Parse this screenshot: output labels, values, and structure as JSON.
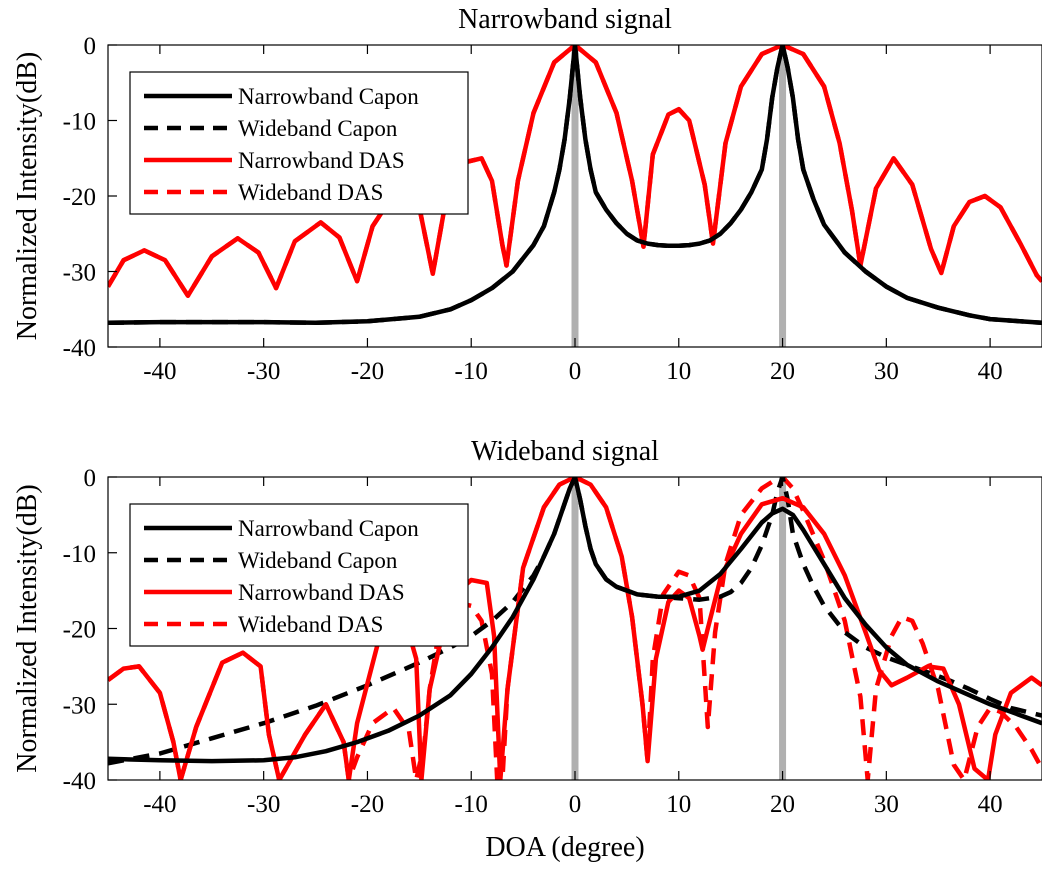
{
  "chart_data": [
    {
      "type": "line",
      "title": "Narrowband signal",
      "xlabel": "",
      "ylabel": "Normalized Intensity(dB)",
      "xlim": [
        -45,
        45
      ],
      "ylim": [
        -40,
        0
      ],
      "xticks": [
        -40,
        -30,
        -20,
        -10,
        0,
        10,
        20,
        30,
        40
      ],
      "yticks": [
        0,
        -10,
        -20,
        -30,
        -40
      ],
      "grid": false,
      "legend_position": "top-left",
      "source_markers": {
        "x": [
          0,
          20
        ],
        "color": "#b0b0b0"
      },
      "series": [
        {
          "name": "Narrowband Capon",
          "color": "#000000",
          "dash": "solid",
          "x": [
            -45,
            -40,
            -35,
            -30,
            -25,
            -20,
            -15,
            -12,
            -10,
            -8,
            -6,
            -4,
            -3,
            -2,
            -1.5,
            -1,
            -0.5,
            0,
            0.5,
            1,
            1.5,
            2,
            3,
            4,
            5,
            6,
            7,
            8,
            9,
            10,
            11,
            12,
            13,
            14,
            15,
            16,
            17,
            18,
            18.5,
            19,
            19.5,
            20,
            20.5,
            21,
            21.5,
            22,
            23,
            24,
            26,
            28,
            30,
            32,
            35,
            38,
            40,
            42,
            45
          ],
          "y": [
            -36.8,
            -36.7,
            -36.7,
            -36.7,
            -36.8,
            -36.6,
            -36,
            -35,
            -33.8,
            -32.2,
            -30,
            -26.5,
            -24,
            -19.5,
            -16.5,
            -12.5,
            -7,
            0,
            -7,
            -12.5,
            -16.5,
            -19.5,
            -21.8,
            -23.6,
            -25,
            -25.9,
            -26.3,
            -26.5,
            -26.6,
            -26.6,
            -26.5,
            -26.3,
            -25.9,
            -25,
            -23.6,
            -21.8,
            -19.5,
            -16.5,
            -12.5,
            -7,
            -3,
            0,
            -3,
            -7,
            -12.5,
            -16.5,
            -20.5,
            -23.8,
            -27.5,
            -30,
            -32,
            -33.5,
            -34.8,
            -35.8,
            -36.3,
            -36.5,
            -36.8
          ]
        },
        {
          "name": "Wideband Capon",
          "color": "#000000",
          "dash": "dashed",
          "x": [
            -45,
            -40,
            -35,
            -30,
            -25,
            -20,
            -15,
            -12,
            -10,
            -8,
            -6,
            -4,
            -3,
            -2,
            -1.5,
            -1,
            -0.5,
            0,
            0.5,
            1,
            1.5,
            2,
            3,
            4,
            5,
            6,
            7,
            8,
            9,
            10,
            11,
            12,
            13,
            14,
            15,
            16,
            17,
            18,
            18.5,
            19,
            19.5,
            20,
            20.5,
            21,
            21.5,
            22,
            23,
            24,
            26,
            28,
            30,
            32,
            35,
            38,
            40,
            42,
            45
          ],
          "y": [
            -36.8,
            -36.7,
            -36.7,
            -36.7,
            -36.8,
            -36.6,
            -36,
            -35,
            -33.8,
            -32.2,
            -30,
            -26.5,
            -24,
            -19.5,
            -16.5,
            -12.5,
            -7,
            0,
            -7,
            -12.5,
            -16.5,
            -19.5,
            -21.8,
            -23.6,
            -25,
            -25.9,
            -26.3,
            -26.5,
            -26.6,
            -26.6,
            -26.5,
            -26.3,
            -25.9,
            -25,
            -23.6,
            -21.8,
            -19.5,
            -16.5,
            -12.5,
            -7,
            -3,
            0,
            -3,
            -7,
            -12.5,
            -16.5,
            -20.5,
            -23.8,
            -27.5,
            -30,
            -32,
            -33.5,
            -34.8,
            -35.8,
            -36.3,
            -36.5,
            -36.8
          ]
        },
        {
          "name": "Narrowband DAS",
          "color": "#ff0000",
          "dash": "solid",
          "x": [
            -45,
            -43.5,
            -41.5,
            -39.5,
            -37.3,
            -35,
            -32.5,
            -30.5,
            -28.8,
            -27,
            -24.5,
            -22.7,
            -21,
            -19.5,
            -17,
            -15,
            -13.7,
            -12.5,
            -10.5,
            -9,
            -8,
            -7,
            -6.6,
            -5.5,
            -4,
            -2,
            0,
            2,
            4,
            5.5,
            6.6,
            7.5,
            9,
            10,
            11,
            12.5,
            13.3,
            14.5,
            16,
            18,
            20,
            22,
            24,
            25.5,
            26.7,
            27.5,
            29,
            30.7,
            32.5,
            34.3,
            35.3,
            36.5,
            38,
            39.5,
            41,
            43,
            44.5,
            45
          ],
          "y": [
            -32,
            -28.5,
            -27.2,
            -28.5,
            -33.2,
            -28,
            -25.6,
            -27.5,
            -32.2,
            -26,
            -23.5,
            -25.5,
            -31.3,
            -24,
            -18.8,
            -21.5,
            -30.3,
            -21,
            -15.5,
            -15,
            -18,
            -26.5,
            -29.2,
            -18,
            -9,
            -2.3,
            0,
            -2.3,
            -9,
            -18,
            -26.7,
            -14.5,
            -9.2,
            -8.5,
            -10,
            -18.5,
            -26.3,
            -13,
            -5.5,
            -1.2,
            0,
            -1.2,
            -5.5,
            -13,
            -22,
            -29.2,
            -19,
            -15,
            -18.5,
            -27,
            -30.2,
            -24,
            -20.8,
            -20,
            -21.5,
            -26.5,
            -30.5,
            -31.3
          ]
        },
        {
          "name": "Wideband DAS",
          "color": "#ff0000",
          "dash": "dashed",
          "x": [
            -45,
            -43.5,
            -41.5,
            -39.5,
            -37.3,
            -35,
            -32.5,
            -30.5,
            -28.8,
            -27,
            -24.5,
            -22.7,
            -21,
            -19.5,
            -17,
            -15,
            -13.7,
            -12.5,
            -10.5,
            -9,
            -8,
            -7,
            -6.6,
            -5.5,
            -4,
            -2,
            0,
            2,
            4,
            5.5,
            6.6,
            7.5,
            9,
            10,
            11,
            12.5,
            13.3,
            14.5,
            16,
            18,
            20,
            22,
            24,
            25.5,
            26.7,
            27.5,
            29,
            30.7,
            32.5,
            34.3,
            35.3,
            36.5,
            38,
            39.5,
            41,
            43,
            44.5,
            45
          ],
          "y": [
            -32,
            -28.5,
            -27.2,
            -28.5,
            -33.2,
            -28,
            -25.6,
            -27.5,
            -32.2,
            -26,
            -23.5,
            -25.5,
            -31.3,
            -24,
            -18.8,
            -21.5,
            -30.3,
            -21,
            -15.5,
            -15,
            -18,
            -26.5,
            -29.2,
            -18,
            -9,
            -2.3,
            0,
            -2.3,
            -9,
            -18,
            -26.7,
            -14.5,
            -9.2,
            -8.5,
            -10,
            -18.5,
            -26.3,
            -13,
            -5.5,
            -1.2,
            0,
            -1.2,
            -5.5,
            -13,
            -22,
            -29.2,
            -19,
            -15,
            -18.5,
            -27,
            -30.2,
            -24,
            -20.8,
            -20,
            -21.5,
            -26.5,
            -30.5,
            -31.3
          ]
        }
      ]
    },
    {
      "type": "line",
      "title": "Wideband signal",
      "xlabel": "DOA (degree)",
      "ylabel": "Normalized Intensity(dB)",
      "xlim": [
        -45,
        45
      ],
      "ylim": [
        -40,
        0
      ],
      "xticks": [
        -40,
        -30,
        -20,
        -10,
        0,
        10,
        20,
        30,
        40
      ],
      "yticks": [
        0,
        -10,
        -20,
        -30,
        -40
      ],
      "grid": false,
      "legend_position": "top-left",
      "source_markers": {
        "x": [
          0,
          20
        ],
        "color": "#b0b0b0"
      },
      "series": [
        {
          "name": "Narrowband Capon",
          "color": "#000000",
          "dash": "solid",
          "x": [
            -45,
            -40,
            -35,
            -30,
            -27,
            -24,
            -21,
            -18,
            -15,
            -12,
            -10,
            -8,
            -6,
            -4,
            -3,
            -2,
            -1.5,
            -1,
            -0.5,
            0,
            0.5,
            1,
            1.5,
            2,
            3,
            4,
            6,
            8,
            10,
            12,
            14,
            16,
            18,
            19,
            20,
            21,
            22,
            24,
            26,
            28,
            30,
            32,
            35,
            38,
            40,
            42,
            45
          ],
          "y": [
            -37.2,
            -37.4,
            -37.5,
            -37.4,
            -37,
            -36.2,
            -35,
            -33.5,
            -31.5,
            -28.8,
            -26,
            -22.5,
            -18.5,
            -13.5,
            -10.5,
            -7.5,
            -5.5,
            -3.5,
            -1.5,
            0,
            -3,
            -6.5,
            -9.5,
            -11.5,
            -13.5,
            -14.5,
            -15.5,
            -15.8,
            -15.8,
            -15,
            -12.8,
            -9.5,
            -6,
            -4.8,
            -4.2,
            -5,
            -7,
            -11.5,
            -16,
            -19.5,
            -22.5,
            -24.8,
            -27,
            -28.8,
            -30,
            -31,
            -32.5
          ]
        },
        {
          "name": "Wideband Capon",
          "color": "#000000",
          "dash": "dashed",
          "x": [
            -45,
            -40,
            -35,
            -30,
            -25,
            -20,
            -15,
            -12,
            -10,
            -8,
            -6,
            -4,
            -3,
            -2,
            -1.5,
            -1,
            -0.5,
            0,
            0.5,
            1,
            1.5,
            2,
            3,
            4,
            6,
            8,
            10,
            12,
            14,
            15,
            16,
            17,
            18,
            19,
            19.5,
            20,
            20.5,
            21,
            22,
            23,
            24,
            26,
            28,
            30,
            32,
            34,
            36,
            38,
            40,
            42,
            45
          ],
          "y": [
            -37.8,
            -36.5,
            -34.5,
            -32.5,
            -30.2,
            -27.5,
            -24.5,
            -22.5,
            -21,
            -19,
            -16.5,
            -13,
            -10.5,
            -7.5,
            -5.5,
            -3.5,
            -1.5,
            0,
            -3,
            -6.5,
            -9.5,
            -11.5,
            -13.5,
            -14.5,
            -15.5,
            -15.8,
            -16,
            -16.2,
            -15.8,
            -15.2,
            -14,
            -12,
            -9,
            -5,
            -2,
            0,
            -3,
            -7.5,
            -11.5,
            -14.5,
            -17,
            -20.5,
            -22.5,
            -23.8,
            -24.8,
            -25.8,
            -26.8,
            -28,
            -29.3,
            -30.5,
            -31.5
          ]
        },
        {
          "name": "Narrowband DAS",
          "color": "#ff0000",
          "dash": "solid",
          "x": [
            -45,
            -43.5,
            -42,
            -40,
            -38.7,
            -38,
            -36.5,
            -34,
            -32,
            -30.3,
            -29.5,
            -28.5,
            -26,
            -24,
            -22.3,
            -21.8,
            -21,
            -19,
            -17,
            -15.3,
            -14.8,
            -14,
            -12,
            -10,
            -8.5,
            -7.8,
            -7.2,
            -6.5,
            -5,
            -3,
            -1.5,
            0,
            1.5,
            3,
            4.5,
            5.5,
            6.5,
            7,
            7.8,
            9,
            10,
            11,
            12,
            12.3,
            12.8,
            14,
            16,
            18,
            20,
            22,
            24,
            26,
            28,
            29.3,
            30.5,
            32,
            34,
            35.5,
            37,
            38.5,
            39.8,
            40.5,
            42,
            44,
            45
          ],
          "y": [
            -26.8,
            -25.3,
            -25,
            -28.5,
            -35,
            -40,
            -33,
            -24.5,
            -23.2,
            -25,
            -34,
            -40,
            -34,
            -30,
            -35,
            -40,
            -32.5,
            -22,
            -15.8,
            -24,
            -40,
            -28,
            -16,
            -13.6,
            -14,
            -21,
            -40,
            -28,
            -12,
            -4,
            -1,
            0,
            -1,
            -4,
            -10.5,
            -18.5,
            -30,
            -37.5,
            -24,
            -16.5,
            -15,
            -16,
            -21,
            -22.8,
            -20,
            -13.5,
            -7.5,
            -3.6,
            -2.8,
            -4,
            -7.5,
            -13,
            -20.5,
            -25.5,
            -27.5,
            -26.5,
            -25,
            -25.3,
            -30,
            -38.5,
            -40,
            -34,
            -28.5,
            -26.5,
            -27.5
          ]
        },
        {
          "name": "Wideband DAS",
          "color": "#ff0000",
          "dash": "dashed",
          "x": [
            -45,
            -43.5,
            -42,
            -40,
            -38.7,
            -38,
            -36.5,
            -34,
            -32,
            -30.3,
            -29.5,
            -28.5,
            -26,
            -24,
            -22.3,
            -21.8,
            -21,
            -19.5,
            -17.5,
            -16,
            -15.3,
            -14.5,
            -14,
            -13,
            -11.5,
            -10,
            -9,
            -8,
            -7.5,
            -7,
            -6.5,
            -5,
            -3,
            -1.5,
            0,
            1.5,
            3,
            4.5,
            5.5,
            6.5,
            7,
            7.5,
            8.5,
            10,
            11,
            12,
            12.8,
            13.5,
            14.5,
            16,
            18,
            19.5,
            20,
            21,
            22,
            24,
            26,
            27.5,
            28.2,
            29,
            30.5,
            31.5,
            32.5,
            33.5,
            35,
            36.5,
            37.5,
            38.8,
            40,
            41,
            42.5,
            44,
            45
          ],
          "y": [
            -26.8,
            -25.3,
            -25,
            -28.5,
            -35,
            -40,
            -33,
            -24.5,
            -23.2,
            -25,
            -34,
            -40,
            -34,
            -30,
            -35,
            -40,
            -37,
            -32.5,
            -30.5,
            -33.5,
            -40,
            -35,
            -28,
            -19.5,
            -16.5,
            -17,
            -19,
            -26,
            -40,
            -40,
            -28,
            -12,
            -4,
            -1,
            0,
            -1,
            -4,
            -10.5,
            -18.5,
            -30,
            -37.5,
            -24,
            -15.5,
            -12.5,
            -13,
            -16,
            -33,
            -20.5,
            -11.5,
            -5,
            -1.5,
            -0.2,
            0,
            -1.5,
            -4.5,
            -11,
            -19,
            -29,
            -40,
            -28,
            -21,
            -18.5,
            -19,
            -22,
            -28,
            -38,
            -40,
            -33,
            -30.5,
            -31,
            -33,
            -36,
            -38.5
          ]
        }
      ]
    }
  ]
}
